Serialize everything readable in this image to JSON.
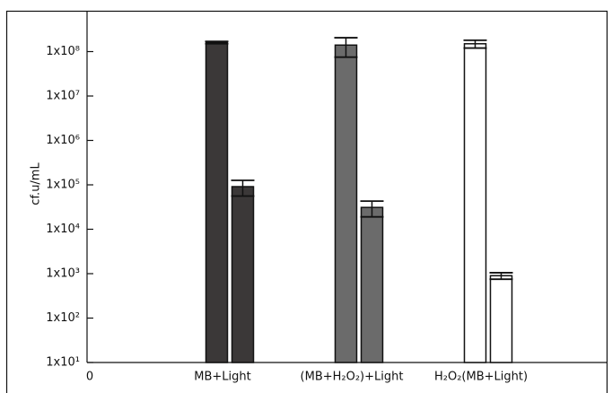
{
  "chart_data": {
    "type": "bar",
    "y_label": "cf.u/mL",
    "x_origin_label": "0",
    "categories": [
      "MB+Light",
      "(MB+H₂O₂)+Light",
      "H₂O₂(MB+Light)"
    ],
    "colors": [
      "#3b3838",
      "#6b6b6b",
      "#ffffff"
    ],
    "series": [
      {
        "values": [
          160000000,
          140000000,
          150000000
        ],
        "errors": [
          10000000,
          65000000,
          30000000
        ]
      },
      {
        "values": [
          91000.0,
          31000,
          900
        ],
        "errors": [
          35000,
          12000,
          150
        ]
      }
    ],
    "log_y": true,
    "ylim": [
      10,
      1000000000
    ],
    "yticks": [
      {
        "value": 10,
        "label": "1x10¹"
      },
      {
        "value": 100,
        "label": "1x10²"
      },
      {
        "value": 1000,
        "label": "1x10³"
      },
      {
        "value": 10000,
        "label": "1x10⁴"
      },
      {
        "value": 100000,
        "label": "1x10⁵"
      },
      {
        "value": 1000000,
        "label": "1x10⁶"
      },
      {
        "value": 10000000,
        "label": "1x10⁷"
      },
      {
        "value": 100000000,
        "label": "1x10⁸"
      }
    ]
  }
}
